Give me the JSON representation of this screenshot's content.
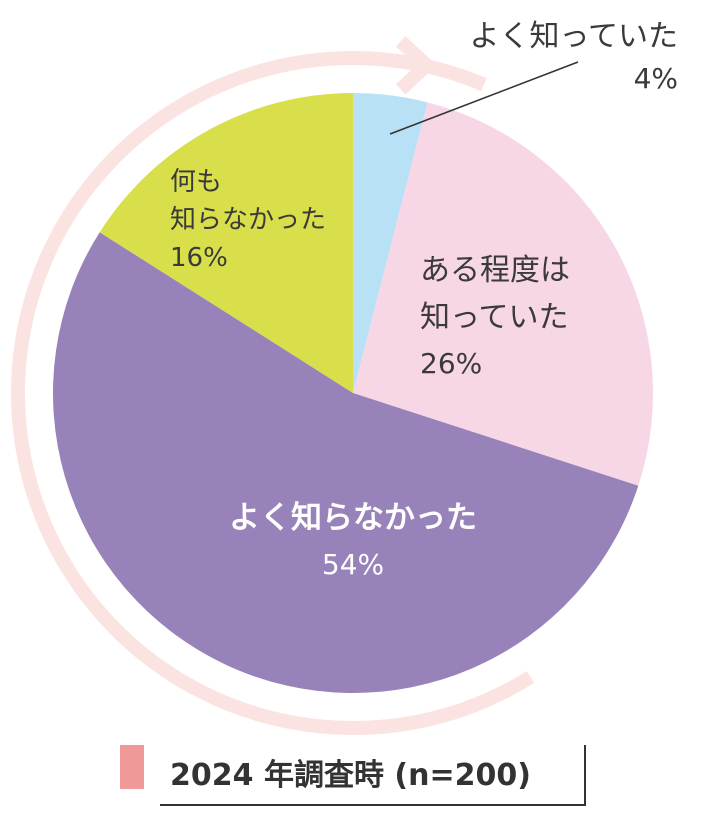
{
  "chart_data": {
    "type": "pie",
    "categories": [
      "よく知っていた",
      "ある程度は知っていた",
      "よく知らなかった",
      "何も知らなかった"
    ],
    "values": [
      4,
      26,
      54,
      16
    ],
    "colors": [
      "#b9e1f6",
      "#f7d6e5",
      "#9882ba",
      "#d9df4a"
    ],
    "labels": [
      {
        "lines": [
          "よく知っていた"
        ],
        "value": "4%"
      },
      {
        "lines": [
          "ある程度は",
          "知っていた"
        ],
        "value": "26%"
      },
      {
        "lines": [
          "よく知らなかった"
        ],
        "value": "54%"
      },
      {
        "lines": [
          "何も",
          "知らなかった"
        ],
        "value": "16%"
      }
    ],
    "start_angle": "12 o'clock",
    "direction": "clockwise",
    "arrow_color": "#fbe3e2"
  },
  "legend": {
    "text": "2024 年調査時 (n=200)",
    "swatch_color": "#ef9a98"
  }
}
